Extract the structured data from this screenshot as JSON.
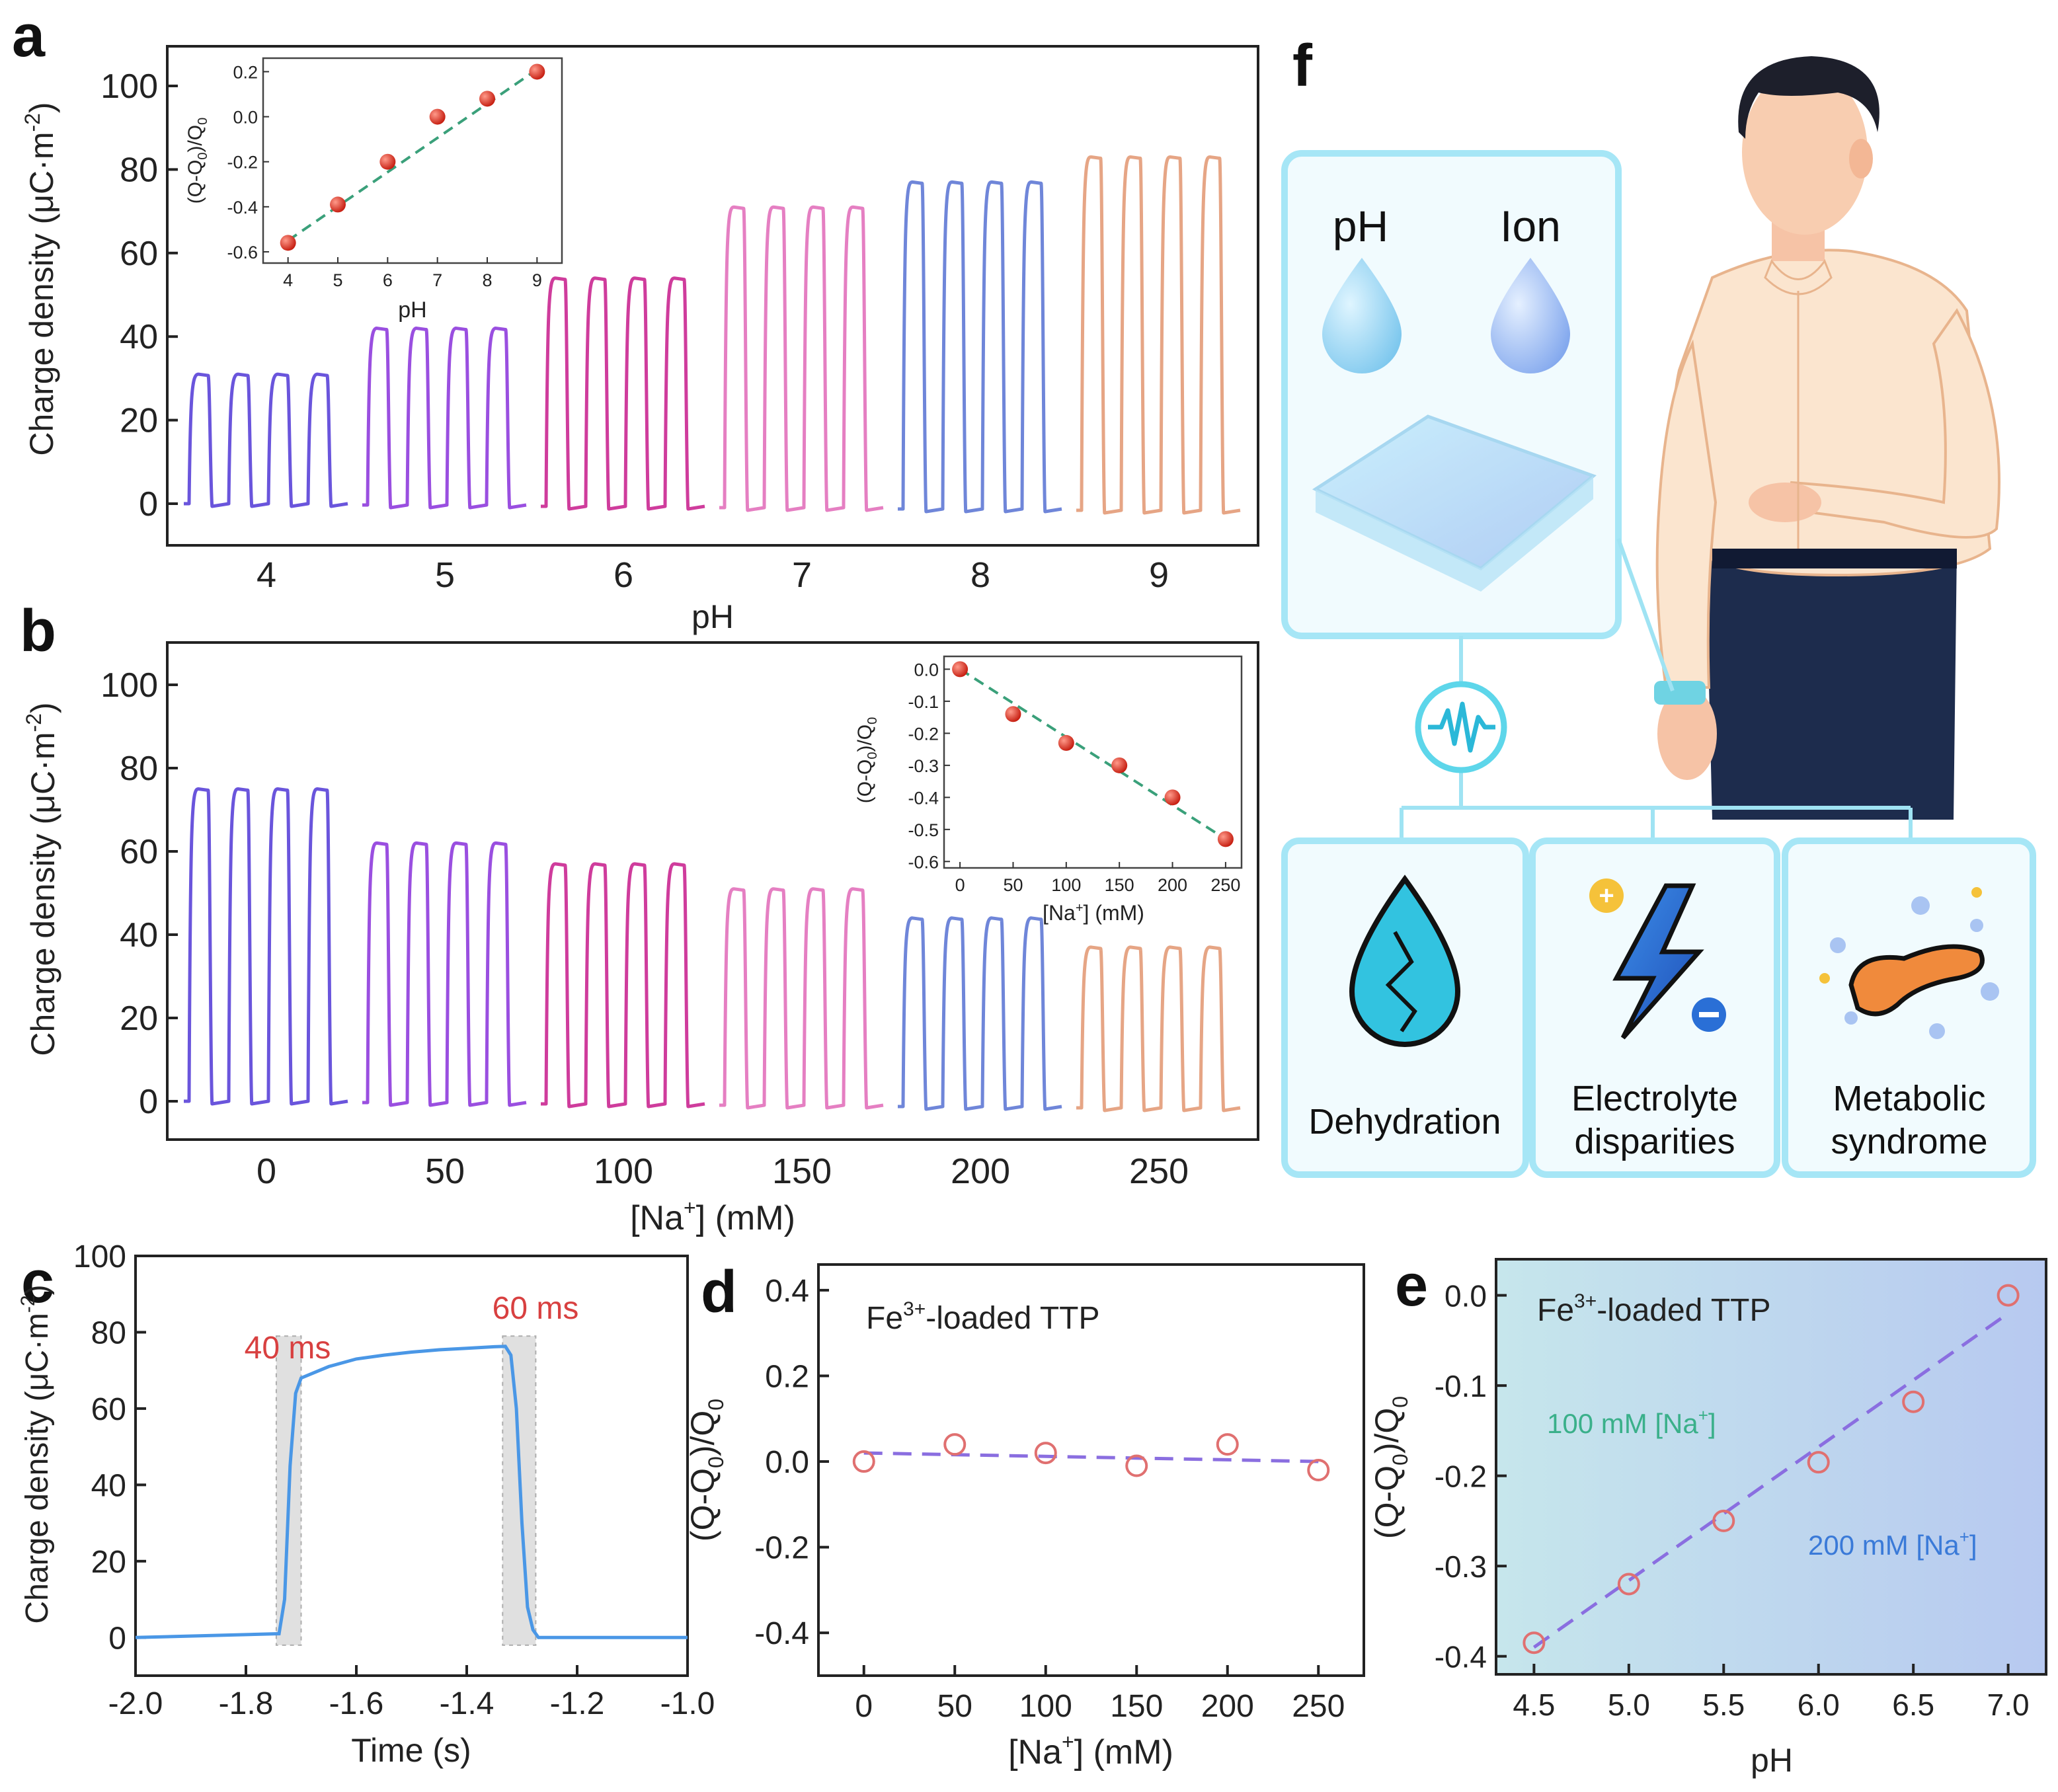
{
  "panel_letters": {
    "a": "a",
    "b": "b",
    "c": "c",
    "d": "d",
    "e": "e",
    "f": "f"
  },
  "colors": {
    "groups": [
      "#6a55dc",
      "#9a4fe0",
      "#cf3c9c",
      "#e57fc2",
      "#6f86d9",
      "#e6a585"
    ],
    "inset_marker": "#d8301f",
    "inset_fit": "#3aa07a",
    "trace_c": "#4a97e6",
    "marker_de": "#e07070",
    "fit_de": "#8a6ee0",
    "text_c_annot": "#d84040",
    "text_e_green": "#3ab08a",
    "text_e_blue": "#3a7ad8",
    "panel_e_bg1": "#c6e6ec",
    "panel_e_bg2": "#b7c9f0",
    "box_border": "#a6e6f6",
    "box_fill": "#f1fbfe"
  },
  "chart_data": [
    {
      "id": "a",
      "type": "line",
      "ylabel": "Charge density (μC·m",
      "ylabel_sup": "-2",
      "ylabel_end": ")",
      "xlabel": "pH",
      "ylim": [
        -10,
        110
      ],
      "yticks": [
        0,
        20,
        40,
        60,
        80,
        100
      ],
      "ytick_labels": [
        "0",
        "20",
        "40",
        "60",
        "80",
        "100"
      ],
      "categories": [
        "4",
        "5",
        "6",
        "7",
        "8",
        "9"
      ],
      "pulse_heights": [
        31,
        42,
        54,
        71,
        77,
        83
      ],
      "pulses_per_group": 4,
      "inset": {
        "type": "scatter",
        "xlabel": "pH",
        "ylabel": "(Q-Q",
        "ylabel_sub": "0",
        "ylabel_mid": ")/Q",
        "ylabel_sub2": "0",
        "x": [
          4,
          5,
          6,
          7,
          8,
          9
        ],
        "y": [
          -0.56,
          -0.39,
          -0.2,
          0.0,
          0.08,
          0.2
        ],
        "xlim": [
          3.5,
          9.5
        ],
        "ylim": [
          -0.65,
          0.26
        ],
        "xticks": [
          "4",
          "5",
          "6",
          "7",
          "8",
          "9"
        ],
        "yticks": [
          -0.6,
          -0.4,
          -0.2,
          0.0,
          0.2
        ],
        "ytick_labels": [
          "-0.6",
          "-0.4",
          "-0.2",
          "0.0",
          "0.2"
        ],
        "fit": [
          [
            4,
            -0.55
          ],
          [
            9,
            0.21
          ]
        ]
      }
    },
    {
      "id": "b",
      "type": "line",
      "ylabel": "Charge density (μC·m",
      "ylabel_sup": "-2",
      "ylabel_end": ")",
      "xlabel": "[Na",
      "xlabel_sup": "+",
      "xlabel_end": "] (mM)",
      "ylim": [
        -10,
        110
      ],
      "yticks": [
        0,
        20,
        40,
        60,
        80,
        100
      ],
      "ytick_labels": [
        "0",
        "20",
        "40",
        "60",
        "80",
        "100"
      ],
      "categories": [
        "0",
        "50",
        "100",
        "150",
        "200",
        "250"
      ],
      "pulse_heights": [
        75,
        62,
        57,
        51,
        44,
        37
      ],
      "pulses_per_group": 4,
      "inset": {
        "type": "scatter",
        "xlabel": "[Na",
        "xlabel_sup": "+",
        "xlabel_end": "] (mM)",
        "ylabel": "(Q-Q",
        "ylabel_sub": "0",
        "ylabel_mid": ")/Q",
        "ylabel_sub2": "0",
        "x": [
          0,
          50,
          100,
          150,
          200,
          250
        ],
        "y": [
          0.0,
          -0.14,
          -0.23,
          -0.3,
          -0.4,
          -0.53
        ],
        "xlim": [
          -15,
          265
        ],
        "ylim": [
          -0.62,
          0.04
        ],
        "xticks": [
          "0",
          "50",
          "100",
          "150",
          "200",
          "250"
        ],
        "yticks": [
          0.0,
          -0.1,
          -0.2,
          -0.3,
          -0.4,
          -0.5,
          -0.6
        ],
        "ytick_labels": [
          "0.0",
          "-0.1",
          "-0.2",
          "-0.3",
          "-0.4",
          "-0.5",
          "-0.6"
        ],
        "fit": [
          [
            0,
            0.0
          ],
          [
            250,
            -0.53
          ]
        ]
      }
    },
    {
      "id": "c",
      "type": "line",
      "ylabel": "Charge density (μC·m",
      "ylabel_sup": "-2",
      "ylabel_end": ")",
      "xlabel": "Time (s)",
      "xlim": [
        -2.0,
        -1.0
      ],
      "ylim": [
        -10,
        100
      ],
      "xticks": [
        -2.0,
        -1.8,
        -1.6,
        -1.4,
        -1.2,
        -1.0
      ],
      "xtick_labels": [
        "-2.0",
        "-1.8",
        "-1.6",
        "-1.4",
        "-1.2",
        "-1.0"
      ],
      "yticks": [
        0,
        20,
        40,
        60,
        80,
        100
      ],
      "ytick_labels": [
        "0",
        "20",
        "40",
        "60",
        "80",
        "100"
      ],
      "series": {
        "t": [
          -2.0,
          -1.74,
          -1.73,
          -1.72,
          -1.71,
          -1.7,
          -1.65,
          -1.6,
          -1.55,
          -1.5,
          -1.45,
          -1.4,
          -1.35,
          -1.33,
          -1.32,
          -1.31,
          -1.3,
          -1.29,
          -1.28,
          -1.27,
          -1.0
        ],
        "q": [
          0,
          1,
          10,
          45,
          64,
          68,
          71,
          73,
          74,
          74.8,
          75.4,
          75.8,
          76.2,
          76.3,
          74,
          60,
          30,
          8,
          2,
          0,
          0
        ]
      },
      "rise_window": [
        -1.745,
        -1.7
      ],
      "fall_window": [
        -1.335,
        -1.275
      ],
      "annotations": [
        "40 ms",
        "60 ms"
      ]
    },
    {
      "id": "d",
      "type": "scatter",
      "title": "Fe",
      "title_sup": "3+",
      "title_end": "-loaded TTP",
      "ylabel": "(Q-Q",
      "ylabel_sub": "0",
      "ylabel_mid": ")/Q",
      "ylabel_sub2": "0",
      "xlabel": "[Na",
      "xlabel_sup": "+",
      "xlabel_end": "] (mM)",
      "x": [
        0,
        50,
        100,
        150,
        200,
        250
      ],
      "y": [
        0.0,
        0.04,
        0.02,
        -0.01,
        0.04,
        -0.02
      ],
      "xlim": [
        -25,
        275
      ],
      "ylim": [
        -0.5,
        0.46
      ],
      "xticks": [
        "0",
        "50",
        "100",
        "150",
        "200",
        "250"
      ],
      "yticks": [
        -0.4,
        -0.2,
        0.0,
        0.2,
        0.4
      ],
      "ytick_labels": [
        "-0.4",
        "-0.2",
        "0.0",
        "0.2",
        "0.4"
      ],
      "fit": [
        [
          0,
          0.02
        ],
        [
          250,
          0.0
        ]
      ]
    },
    {
      "id": "e",
      "type": "scatter",
      "title": "Fe",
      "title_sup": "3+",
      "title_end": "-loaded TTP",
      "ylabel": "(Q-Q",
      "ylabel_sub": "0",
      "ylabel_mid": ")/Q",
      "ylabel_sub2": "0",
      "xlabel": "pH",
      "x": [
        4.5,
        5.0,
        5.5,
        6.0,
        6.5,
        7.0
      ],
      "y": [
        -0.385,
        -0.32,
        -0.25,
        -0.185,
        -0.118,
        0.0
      ],
      "xlim": [
        4.3,
        7.2
      ],
      "ylim": [
        -0.42,
        0.04
      ],
      "xticks": [
        "4.5",
        "5.0",
        "5.5",
        "6.0",
        "6.5",
        "7.0"
      ],
      "yticks": [
        0.0,
        -0.1,
        -0.2,
        -0.3,
        -0.4
      ],
      "ytick_labels": [
        "0.0",
        "-0.1",
        "-0.2",
        "-0.3",
        "-0.4"
      ],
      "fit": [
        [
          4.5,
          -0.39
        ],
        [
          7.0,
          -0.02
        ]
      ],
      "annotations": [
        "100 mM [Na",
        "+",
        "]",
        "200 mM [Na",
        "+",
        "]"
      ]
    }
  ],
  "illustration": {
    "sensor_labels": [
      "pH",
      "Ion"
    ],
    "outcomes": [
      "Dehydration",
      "Electrolyte",
      "disparities",
      "Metabolic",
      "syndrome"
    ],
    "icons": [
      "water-drop-icon",
      "water-drop-icon",
      "sensor-patch-icon",
      "signal-wave-icon",
      "cracked-drop-icon",
      "battery-bolt-icon",
      "pancreas-icon"
    ]
  }
}
